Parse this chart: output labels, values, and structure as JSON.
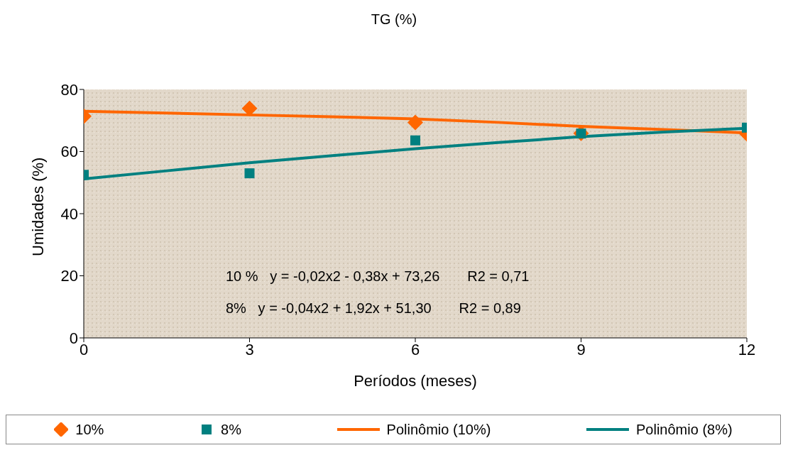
{
  "chart_data": {
    "type": "scatter",
    "title": "TG (%)",
    "xlabel": "Períodos (meses)",
    "ylabel": "Umidades (%)",
    "x": [
      0,
      3,
      6,
      9,
      12
    ],
    "series": [
      {
        "name": "10%",
        "color": "#ff6600",
        "marker": "diamond",
        "values": [
          71.4,
          73.9,
          69.4,
          65.9,
          65.7
        ]
      },
      {
        "name": "8%",
        "color": "#008080",
        "marker": "square",
        "values": [
          52.5,
          53,
          63.6,
          65.8,
          67.7
        ]
      },
      {
        "name": "Polinômio (10%)",
        "type": "line",
        "color": "#ff6600",
        "x": [
          0,
          1.5,
          3,
          4.5,
          6,
          7.5,
          9,
          10.5,
          12
        ],
        "values": [
          73,
          72.4,
          71.8,
          71.2,
          70.5,
          69.4,
          68.1,
          67.1,
          66
        ]
      },
      {
        "name": "Polinômio (8%)",
        "type": "line",
        "color": "#008080",
        "x": [
          0,
          1.5,
          3,
          4.5,
          6,
          7.5,
          9,
          10.5,
          12
        ],
        "values": [
          51.2,
          53.8,
          56.4,
          58.7,
          60.9,
          62.9,
          64.8,
          66.3,
          67.5
        ]
      }
    ],
    "xlim": [
      0,
      12
    ],
    "xticks": [
      0,
      3,
      6,
      9,
      12
    ],
    "ylim": [
      0,
      80
    ],
    "yticks": [
      0,
      20,
      40,
      60,
      80
    ],
    "grid": false,
    "legend": "bottom",
    "line_style": "solid",
    "annotations": [
      "10 %   y = -0,02x2 - 0,38x + 73,26       R2 = 0,71",
      "8%   y = -0,04x2 + 1,92x + 51,30       R2 = 0,89"
    ]
  }
}
